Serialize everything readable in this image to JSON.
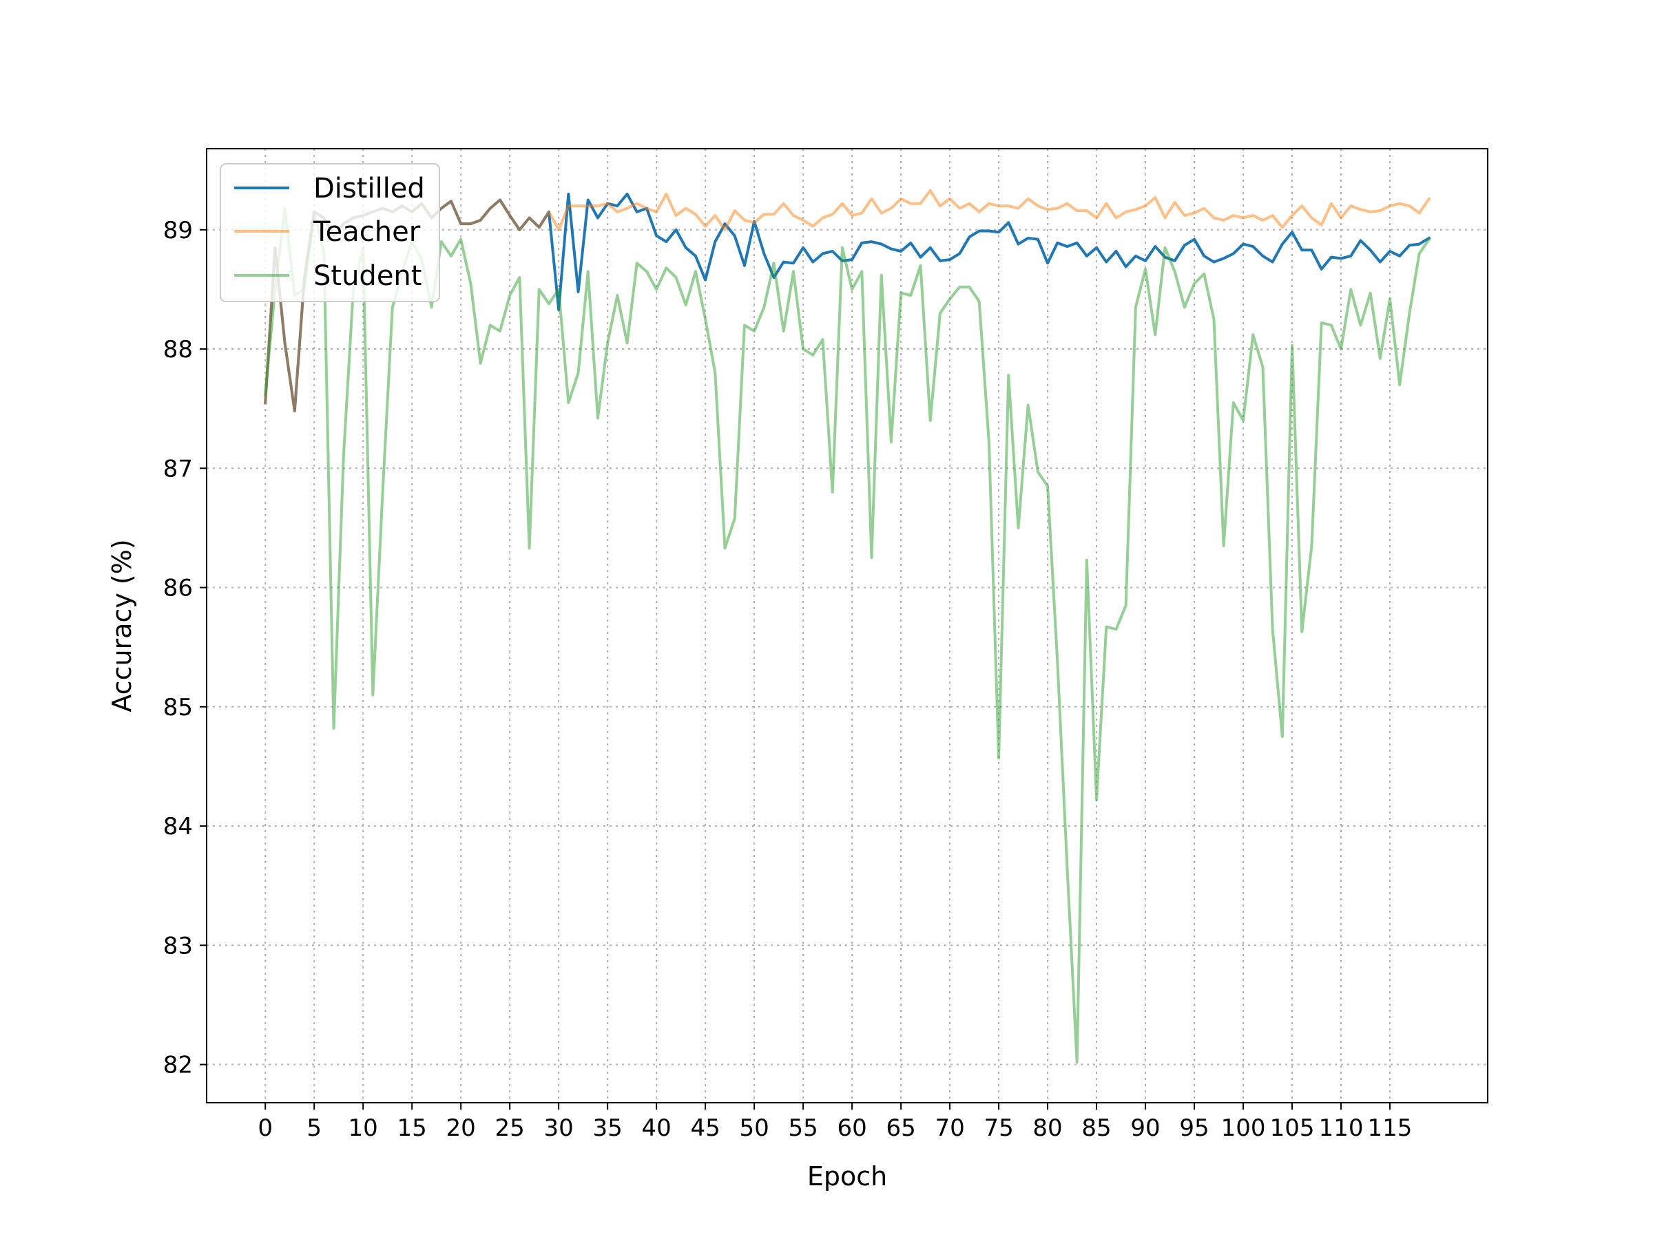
{
  "chart_data": {
    "type": "line",
    "title": "",
    "xlabel": "Epoch",
    "ylabel": "Accuracy (%)",
    "xlim": [
      -6,
      125
    ],
    "ylim": [
      81.68,
      89.68
    ],
    "xticks": [
      0,
      5,
      10,
      15,
      20,
      25,
      30,
      35,
      40,
      45,
      50,
      55,
      60,
      65,
      70,
      75,
      80,
      85,
      90,
      95,
      100,
      105,
      110,
      115
    ],
    "yticks": [
      82,
      83,
      84,
      85,
      86,
      87,
      88,
      89
    ],
    "grid": true,
    "legend_position": "upper-left",
    "series": [
      {
        "name": "Distilled",
        "color": "#1f77b4",
        "alpha": 1.0,
        "values": [
          87.55,
          88.85,
          88.05,
          87.48,
          88.6,
          89.15,
          89.1,
          88.95,
          89.05,
          89.1,
          89.12,
          89.15,
          89.18,
          89.15,
          89.2,
          89.15,
          89.22,
          89.1,
          89.18,
          89.24,
          89.05,
          89.05,
          89.08,
          89.18,
          89.25,
          89.12,
          89.0,
          89.1,
          89.02,
          89.15,
          88.33,
          89.3,
          88.48,
          89.25,
          89.1,
          89.22,
          89.2,
          89.3,
          89.15,
          89.18,
          88.95,
          88.9,
          89.0,
          88.85,
          88.78,
          88.58,
          88.9,
          89.05,
          88.95,
          88.7,
          89.07,
          88.8,
          88.6,
          88.73,
          88.72,
          88.85,
          88.73,
          88.8,
          88.82,
          88.74,
          88.75,
          88.89,
          88.9,
          88.88,
          88.84,
          88.82,
          88.89,
          88.77,
          88.85,
          88.74,
          88.75,
          88.8,
          88.94,
          88.99,
          88.99,
          88.98,
          89.06,
          88.88,
          88.93,
          88.92,
          88.72,
          88.89,
          88.86,
          88.89,
          88.78,
          88.85,
          88.73,
          88.82,
          88.69,
          88.78,
          88.74,
          88.86,
          88.77,
          88.74,
          88.87,
          88.92,
          88.78,
          88.73,
          88.76,
          88.8,
          88.88,
          88.86,
          88.78,
          88.73,
          88.88,
          88.98,
          88.83,
          88.83,
          88.67,
          88.77,
          88.76,
          88.78,
          88.91,
          88.83,
          88.73,
          88.82,
          88.78,
          88.87,
          88.88,
          88.93
        ]
      },
      {
        "name": "Teacher",
        "color": "#ff7f0e",
        "alpha": 0.5,
        "values": [
          87.55,
          88.85,
          88.05,
          87.48,
          88.6,
          89.15,
          89.1,
          88.95,
          89.05,
          89.1,
          89.12,
          89.15,
          89.18,
          89.15,
          89.2,
          89.15,
          89.22,
          89.1,
          89.18,
          89.24,
          89.05,
          89.05,
          89.08,
          89.18,
          89.25,
          89.12,
          89.0,
          89.1,
          89.02,
          89.15,
          89.0,
          89.2,
          89.2,
          89.2,
          89.2,
          89.22,
          89.15,
          89.18,
          89.22,
          89.18,
          89.15,
          89.3,
          89.12,
          89.18,
          89.13,
          89.03,
          89.12,
          89.0,
          89.16,
          89.08,
          89.06,
          89.13,
          89.13,
          89.22,
          89.12,
          89.08,
          89.03,
          89.1,
          89.13,
          89.22,
          89.12,
          89.14,
          89.26,
          89.14,
          89.18,
          89.26,
          89.22,
          89.22,
          89.33,
          89.2,
          89.26,
          89.18,
          89.22,
          89.15,
          89.22,
          89.2,
          89.2,
          89.18,
          89.26,
          89.2,
          89.17,
          89.18,
          89.22,
          89.16,
          89.16,
          89.1,
          89.22,
          89.1,
          89.15,
          89.17,
          89.2,
          89.27,
          89.1,
          89.23,
          89.12,
          89.14,
          89.18,
          89.1,
          89.08,
          89.12,
          89.1,
          89.12,
          89.08,
          89.12,
          89.02,
          89.12,
          89.2,
          89.1,
          89.04,
          89.22,
          89.1,
          89.2,
          89.17,
          89.15,
          89.16,
          89.2,
          89.22,
          89.2,
          89.14,
          89.26
        ]
      },
      {
        "name": "Student",
        "color": "#2ca02c",
        "alpha": 0.5,
        "values": [
          87.62,
          88.5,
          89.18,
          88.45,
          88.5,
          89.15,
          88.8,
          84.82,
          87.1,
          88.5,
          88.85,
          85.1,
          86.8,
          88.35,
          88.65,
          88.9,
          88.75,
          88.35,
          88.9,
          88.78,
          88.92,
          88.55,
          87.88,
          88.2,
          88.15,
          88.45,
          88.6,
          86.33,
          88.5,
          88.38,
          88.5,
          87.55,
          87.8,
          88.65,
          87.42,
          88.05,
          88.45,
          88.05,
          88.72,
          88.65,
          88.5,
          88.68,
          88.6,
          88.37,
          88.65,
          88.25,
          87.8,
          86.33,
          86.58,
          88.2,
          88.15,
          88.35,
          88.72,
          88.15,
          88.65,
          88.0,
          87.95,
          88.08,
          86.8,
          88.85,
          88.5,
          88.65,
          86.25,
          88.62,
          87.22,
          88.47,
          88.45,
          88.7,
          87.4,
          88.3,
          88.42,
          88.52,
          88.52,
          88.4,
          87.22,
          84.57,
          87.78,
          86.5,
          87.53,
          86.97,
          86.85,
          85.38,
          83.65,
          82.02,
          86.23,
          84.22,
          85.67,
          85.65,
          85.85,
          88.35,
          88.67,
          88.12,
          88.85,
          88.65,
          88.35,
          88.55,
          88.63,
          88.25,
          86.35,
          87.55,
          87.4,
          88.12,
          87.85,
          85.65,
          84.75,
          88.03,
          85.63,
          86.35,
          88.22,
          88.2,
          88.0,
          88.5,
          88.2,
          88.47,
          87.92,
          88.42,
          87.7,
          88.3,
          88.8,
          88.92
        ]
      }
    ]
  }
}
